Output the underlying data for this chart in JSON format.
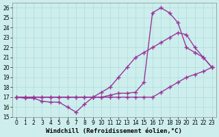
{
  "xlabel": "Windchill (Refroidissement éolien,°C)",
  "bg_color": "#cdeeed",
  "line_color": "#993399",
  "xlim_min": -0.5,
  "xlim_max": 23.5,
  "ylim_min": 15,
  "ylim_max": 26.5,
  "yticks": [
    15,
    16,
    17,
    18,
    19,
    20,
    21,
    22,
    23,
    24,
    25,
    26
  ],
  "xticks": [
    0,
    1,
    2,
    3,
    4,
    5,
    6,
    7,
    8,
    9,
    10,
    11,
    12,
    13,
    14,
    15,
    16,
    17,
    18,
    19,
    20,
    21,
    22,
    23
  ],
  "line1_x": [
    0,
    1,
    2,
    3,
    4,
    5,
    6,
    7,
    8,
    9,
    10,
    11,
    12,
    13,
    14,
    15,
    16,
    17,
    18,
    19,
    20,
    21,
    22,
    23
  ],
  "line1_y": [
    17.0,
    16.9,
    16.9,
    16.6,
    16.5,
    16.5,
    16.0,
    15.5,
    16.3,
    17.0,
    17.0,
    17.2,
    17.4,
    17.4,
    17.5,
    18.5,
    25.5,
    26.0,
    25.5,
    24.5,
    22.0,
    21.5,
    21.0,
    20.0
  ],
  "line2_x": [
    0,
    1,
    2,
    3,
    4,
    5,
    6,
    7,
    8,
    9,
    10,
    11,
    12,
    13,
    14,
    15,
    16,
    17,
    18,
    19,
    20,
    21,
    22,
    23
  ],
  "line2_y": [
    17.0,
    17.0,
    17.0,
    17.0,
    17.0,
    17.0,
    17.0,
    17.0,
    17.0,
    17.0,
    17.5,
    18.0,
    19.0,
    20.0,
    21.0,
    21.5,
    22.0,
    22.5,
    23.0,
    23.5,
    23.3,
    22.0,
    21.0,
    20.0
  ],
  "line3_x": [
    0,
    1,
    2,
    3,
    4,
    5,
    6,
    7,
    8,
    9,
    10,
    11,
    12,
    13,
    14,
    15,
    16,
    17,
    18,
    19,
    20,
    21,
    22,
    23
  ],
  "line3_y": [
    17.0,
    17.0,
    17.0,
    17.0,
    17.0,
    17.0,
    17.0,
    17.0,
    17.0,
    17.0,
    17.0,
    17.0,
    17.0,
    17.0,
    17.0,
    17.0,
    17.0,
    17.5,
    18.0,
    18.5,
    19.0,
    19.3,
    19.6,
    20.0
  ],
  "grid_color": "#aadddd",
  "marker": "+",
  "markersize": 4,
  "linewidth": 1.0,
  "tick_fontsize": 5.5,
  "xlabel_fontsize": 6.5
}
